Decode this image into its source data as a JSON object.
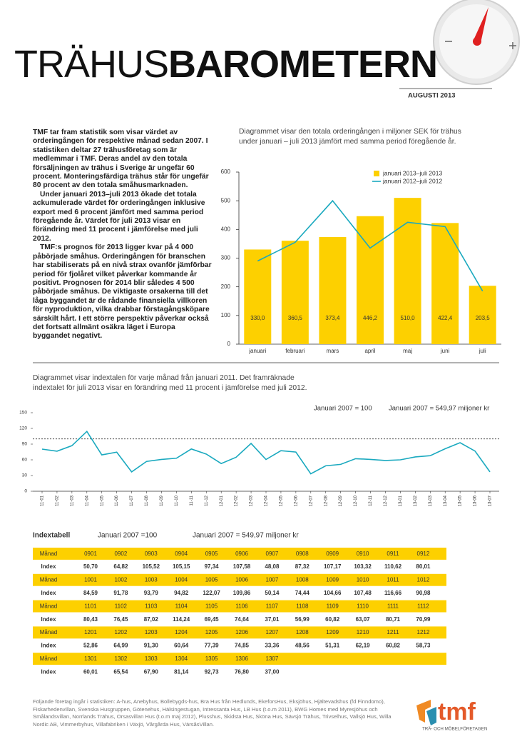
{
  "header": {
    "title_light": "TRÄHUS",
    "title_bold": "BAROMETERN",
    "date": "AUGUSTI 2013"
  },
  "intro": [
    "TMF tar fram statistik som visar värdet av orderingången för respektive månad sedan 2007. I statistiken deltar 27 trähusföretag som är medlemmar i TMF. Deras andel av den totala försäljningen av trähus i Sverige är ungefär 60 procent. Monteringsfärdiga trähus står för ungefär 80 procent av den totala småhusmarknaden.",
    "Under januari 2013–juli 2013 ökade det totala ackumulerade värdet för orderingången inklusive export med 6 procent jämfört med samma period föregående år. Värdet för juli 2013 visar en förändring med 11 procent i jämförelse med juli 2012.",
    "TMF:s prognos för 2013 ligger kvar på 4 000 påbörjade småhus. Orderingången för branschen har stabiliserats på en nivå strax ovanför jämförbar period för fjolåret vilket påverkar kommande år positivt. Prognosen för 2014 blir således 4 500 påbörjade småhus. De viktigaste orsakerna till det låga byggandet är de rådande finansiella villkoren för nyproduktion, vilka drabbar förstagångsköpare särskilt hårt. I ett större perspektiv påverkar också det fortsatt allmänt osäkra läget i Europa byggandet negativt."
  ],
  "chart_data": [
    {
      "type": "bar",
      "subtitle": "Diagrammet visar den totala orderingången i miljoner SEK för trähus under januari – juli 2013 jämfört med samma period föregående år.",
      "categories": [
        "januari",
        "februari",
        "mars",
        "april",
        "maj",
        "juni",
        "juli"
      ],
      "series": [
        {
          "name": "januari 2013–juli 2013",
          "type": "bar",
          "color": "#fdd000",
          "values": [
            330.0,
            360.5,
            373.4,
            446.2,
            510.0,
            422.4,
            203.5
          ],
          "value_labels": [
            "330,0",
            "360,5",
            "373,4",
            "446,2",
            "510,0",
            "422,4",
            "203,5"
          ]
        },
        {
          "name": "januari 2012–juli 2012",
          "type": "line",
          "color": "#1aa9bf",
          "values": [
            290,
            355,
            500,
            335,
            425,
            410,
            185
          ]
        }
      ],
      "ylim": [
        0,
        600
      ],
      "yticks": [
        0,
        100,
        200,
        300,
        400,
        500,
        600
      ],
      "legend": "upper left"
    },
    {
      "type": "line",
      "subtitle": "Diagrammet visar indextalen för varje månad från januari 2011. Det framräknade indextalet för juli 2013 visar en förändring med 11 procent i jämförelse med juli 2012.",
      "annotations": [
        "Januari 2007 = 100",
        "Januari 2007 = 549,97 miljoner kr"
      ],
      "reference_line": 100,
      "x": [
        "11-01",
        "11-02",
        "11-03",
        "11-04",
        "11-05",
        "11-06",
        "11-07",
        "11-08",
        "11-09",
        "11-10",
        "11-11",
        "11-12",
        "12-01",
        "12-02",
        "12-03",
        "12-04",
        "12-05",
        "12-06",
        "12-07",
        "12-08",
        "12-09",
        "12-10",
        "12-11",
        "12-12",
        "13-01",
        "13-02",
        "13-03",
        "13-04",
        "13-05",
        "13-06",
        "13-07"
      ],
      "series": [
        {
          "type": "line",
          "color": "#1aa9bf",
          "values": [
            80.43,
            76.45,
            87.02,
            114.24,
            69.45,
            74.64,
            37.01,
            56.99,
            60.82,
            63.07,
            80.71,
            70.99,
            52.86,
            64.99,
            91.3,
            60.64,
            77.39,
            74.85,
            33.36,
            48.56,
            51.31,
            62.19,
            60.82,
            58.73,
            60.01,
            65.54,
            67.9,
            81.14,
            92.73,
            76.8,
            37.0
          ]
        }
      ],
      "ylim": [
        0,
        150
      ],
      "yticks": [
        0,
        30,
        60,
        90,
        120,
        150
      ]
    }
  ],
  "table": {
    "title": "Indextabell",
    "notes": [
      "Januari 2007 =100",
      "Januari 2007 = 549,97 miljoner kr"
    ],
    "rows": [
      [
        "Månad",
        "0901",
        "0902",
        "0903",
        "0904",
        "0905",
        "0906",
        "0907",
        "0908",
        "0909",
        "0910",
        "0911",
        "0912"
      ],
      [
        "Index",
        "50,70",
        "64,82",
        "105,52",
        "105,15",
        "97,34",
        "107,58",
        "48,08",
        "87,32",
        "107,17",
        "103,32",
        "110,62",
        "80,01"
      ],
      [
        "Månad",
        "1001",
        "1002",
        "1003",
        "1004",
        "1005",
        "1006",
        "1007",
        "1008",
        "1009",
        "1010",
        "1011",
        "1012"
      ],
      [
        "Index",
        "84,59",
        "91,78",
        "93,79",
        "94,82",
        "122,07",
        "109,86",
        "50,14",
        "74,44",
        "104,66",
        "107,48",
        "116,66",
        "90,98"
      ],
      [
        "Månad",
        "1101",
        "1102",
        "1103",
        "1104",
        "1105",
        "1106",
        "1107",
        "1108",
        "1109",
        "1110",
        "1111",
        "1112"
      ],
      [
        "Index",
        "80,43",
        "76,45",
        "87,02",
        "114,24",
        "69,45",
        "74,64",
        "37,01",
        "56,99",
        "60,82",
        "63,07",
        "80,71",
        "70,99"
      ],
      [
        "Månad",
        "1201",
        "1202",
        "1203",
        "1204",
        "1205",
        "1206",
        "1207",
        "1208",
        "1209",
        "1210",
        "1211",
        "1212"
      ],
      [
        "Index",
        "52,86",
        "64,99",
        "91,30",
        "60,64",
        "77,39",
        "74,85",
        "33,36",
        "48,56",
        "51,31",
        "62,19",
        "60,82",
        "58,73"
      ],
      [
        "Månad",
        "1301",
        "1302",
        "1303",
        "1304",
        "1305",
        "1306",
        "1307"
      ],
      [
        "Index",
        "60,01",
        "65,54",
        "67,90",
        "81,14",
        "92,73",
        "76,80",
        "37,00"
      ]
    ]
  },
  "footer": {
    "text": "Följande företag ingår i statistiken: A-hus, Anebyhus, Bollebygds-hus, Bra Hus från Hedlunds, EkeforsHus, Eksjöhus, Hjältevadshus (fd Finndomo), Fiskarhedenvillan, Svenska Husgruppen, Götenehus, Hälsingestugan, Intressanta Hus, LB Hus (t.o.m 2011), BWG Homes med Myresjöhus och Smålandsvillan, Norrlands Trähus, Orsasvillan Hus (t.o.m maj 2012), Plusshus, Skidsta Hus, Sköna Hus, Sävsjö Trähus, Trivselhus, Vallsjö Hus, Willa Nordic AB, Vimmerbyhus, Villafabriken i Växjö, Vårgårda Hus, VärsåsVillan.",
    "logo": "tmf",
    "logo_tagline": "TRÄ- OCH MÖBELFÖRETAGEN"
  }
}
